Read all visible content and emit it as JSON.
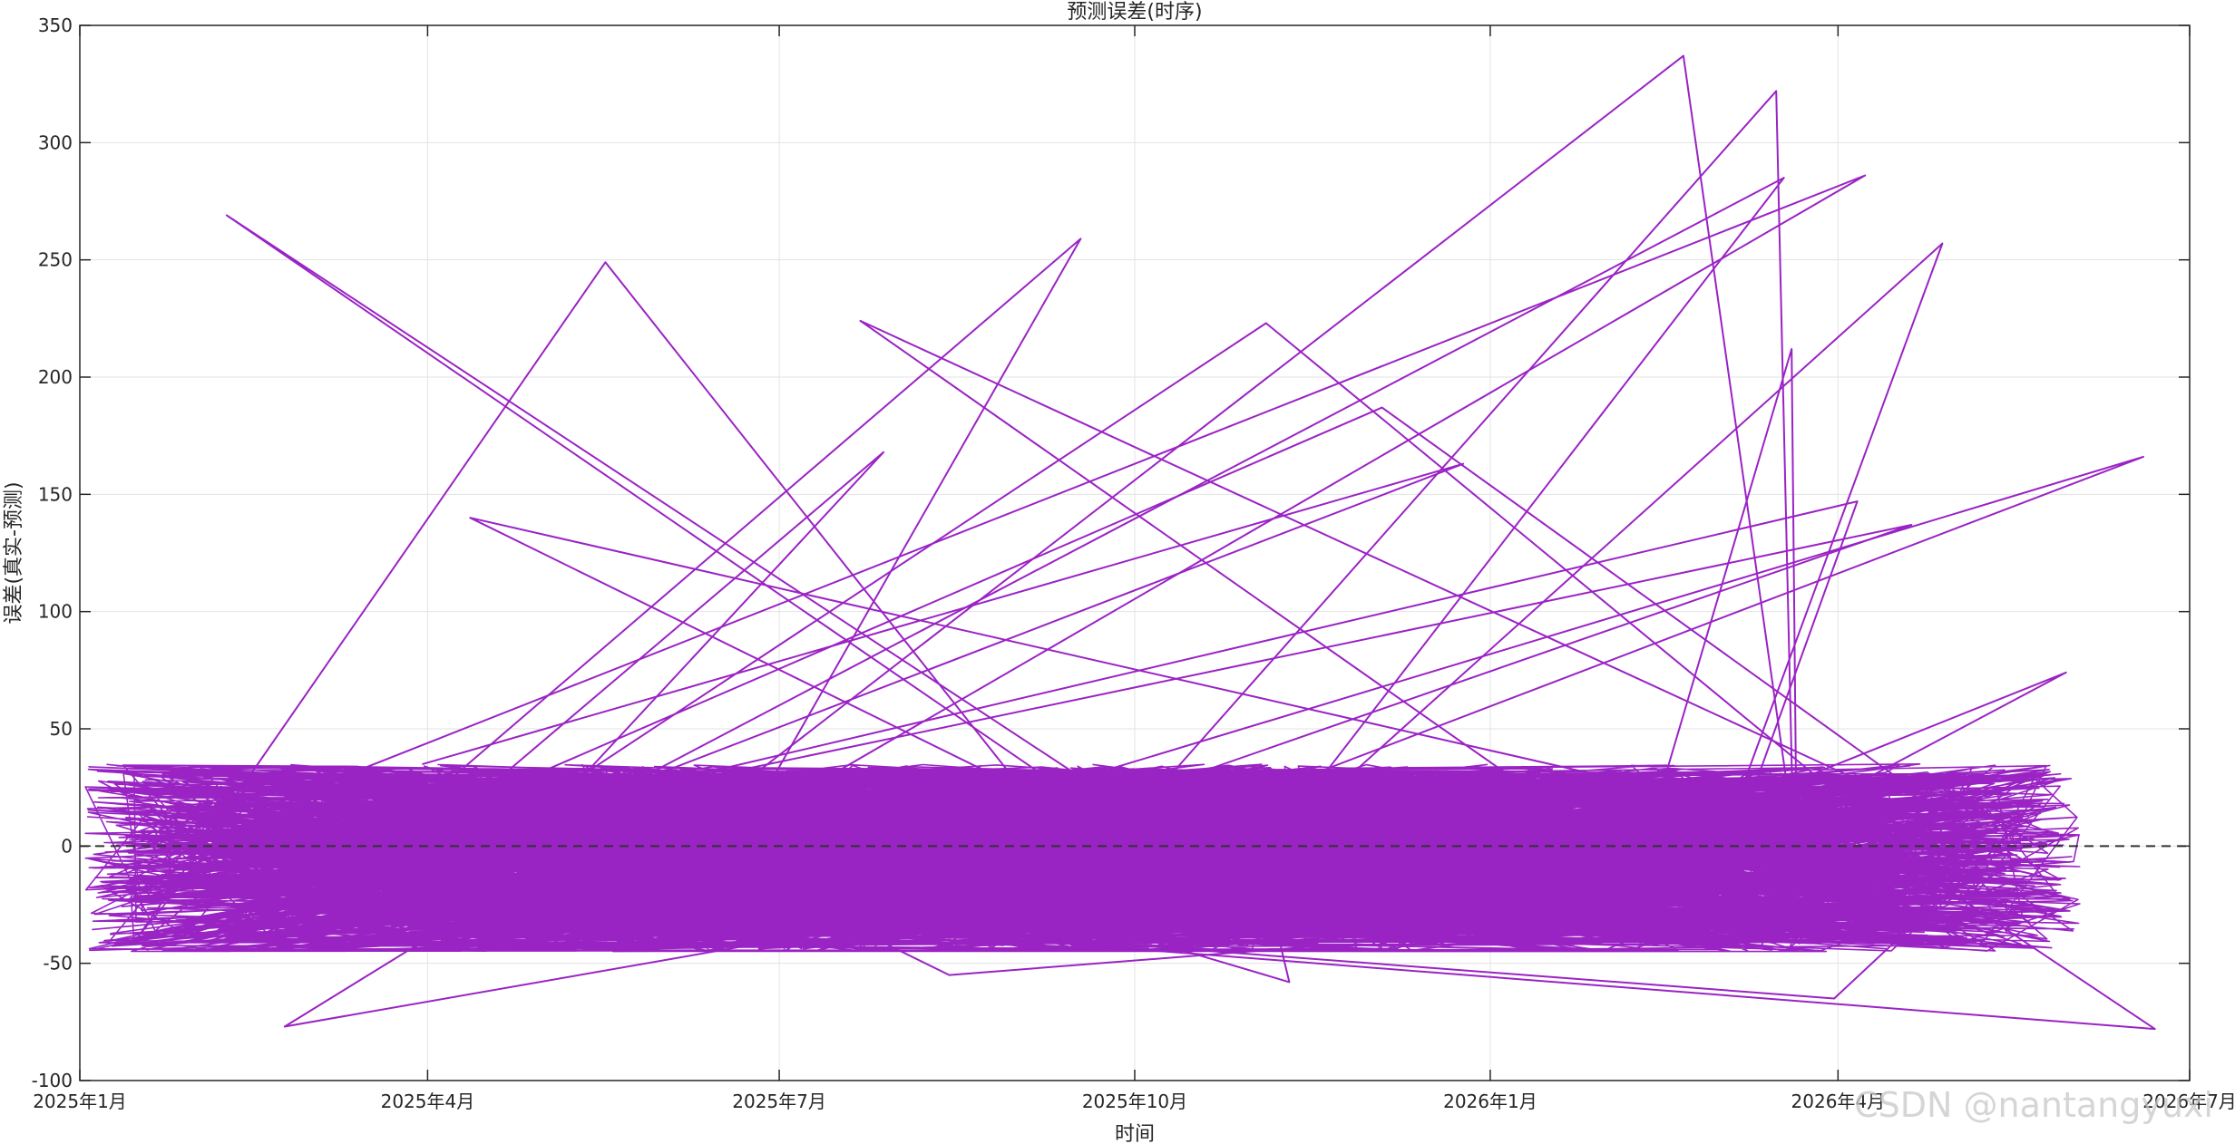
{
  "chart_data": {
    "type": "line",
    "title": "预测误差(时序)",
    "xlabel": "时间",
    "ylabel": "误差(真实-预测)",
    "x_range": [
      "2025-01-01",
      "2026-07-01"
    ],
    "x_ticks": [
      {
        "date": "2025-01-01",
        "label": "2025年1月"
      },
      {
        "date": "2025-04-01",
        "label": "2025年4月"
      },
      {
        "date": "2025-07-01",
        "label": "2025年7月"
      },
      {
        "date": "2025-10-01",
        "label": "2025年10月"
      },
      {
        "date": "2026-01-01",
        "label": "2026年1月"
      },
      {
        "date": "2026-04-01",
        "label": "2026年4月"
      },
      {
        "date": "2026-07-01",
        "label": "2026年7月"
      }
    ],
    "ylim": [
      -100,
      350
    ],
    "y_ticks": [
      -100,
      -50,
      0,
      50,
      100,
      150,
      200,
      250,
      300,
      350
    ],
    "grid": true,
    "zero_line": {
      "y": 0,
      "style": "dashed",
      "color": "#333333"
    },
    "series_color": "#9a23c4",
    "baseline_error_band": [
      -45,
      35
    ],
    "peak_points": [
      {
        "x": "2025-02-08",
        "y": 269
      },
      {
        "x": "2025-04-12",
        "y": 140
      },
      {
        "x": "2025-05-17",
        "y": 249
      },
      {
        "x": "2025-07-22",
        "y": 224
      },
      {
        "x": "2025-07-28",
        "y": 168
      },
      {
        "x": "2025-09-17",
        "y": 259
      },
      {
        "x": "2025-11-04",
        "y": 223
      },
      {
        "x": "2025-12-04",
        "y": 187
      },
      {
        "x": "2025-12-25",
        "y": 163
      },
      {
        "x": "2026-02-20",
        "y": 337
      },
      {
        "x": "2026-03-16",
        "y": 322
      },
      {
        "x": "2026-03-18",
        "y": 285
      },
      {
        "x": "2026-03-20",
        "y": 212
      },
      {
        "x": "2026-04-08",
        "y": 286
      },
      {
        "x": "2026-04-28",
        "y": 257
      },
      {
        "x": "2026-04-20",
        "y": 137
      },
      {
        "x": "2026-04-06",
        "y": 147
      },
      {
        "x": "2026-06-19",
        "y": 166
      },
      {
        "x": "2026-05-30",
        "y": 74
      }
    ],
    "trough_points": [
      {
        "x": "2025-02-23",
        "y": -77
      },
      {
        "x": "2025-08-14",
        "y": -55
      },
      {
        "x": "2025-11-10",
        "y": -58
      },
      {
        "x": "2026-03-31",
        "y": -65
      },
      {
        "x": "2026-06-22",
        "y": -78
      }
    ],
    "watermark": "CSDN @nantangyuxi"
  }
}
